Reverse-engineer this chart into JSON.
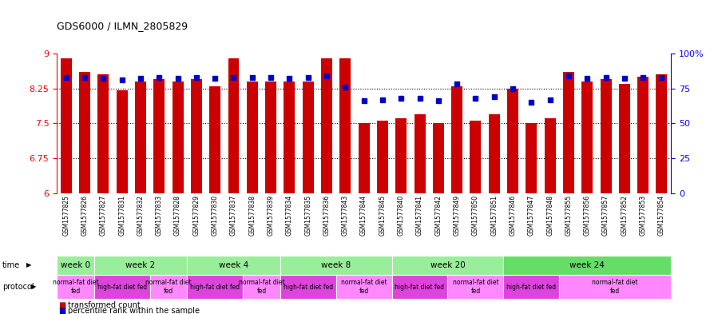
{
  "title": "GDS6000 / ILMN_2805829",
  "samples": [
    "GSM1577825",
    "GSM1577826",
    "GSM1577827",
    "GSM1577831",
    "GSM1577832",
    "GSM1577833",
    "GSM1577828",
    "GSM1577829",
    "GSM1577830",
    "GSM1577837",
    "GSM1577838",
    "GSM1577839",
    "GSM1577834",
    "GSM1577835",
    "GSM1577836",
    "GSM1577843",
    "GSM1577844",
    "GSM1577845",
    "GSM1577840",
    "GSM1577841",
    "GSM1577842",
    "GSM1577849",
    "GSM1577850",
    "GSM1577851",
    "GSM1577846",
    "GSM1577847",
    "GSM1577848",
    "GSM1577855",
    "GSM1577856",
    "GSM1577857",
    "GSM1577852",
    "GSM1577853",
    "GSM1577854"
  ],
  "bar_values": [
    8.9,
    8.6,
    8.55,
    8.2,
    8.4,
    8.45,
    8.4,
    8.45,
    8.3,
    8.9,
    8.4,
    8.4,
    8.4,
    8.4,
    8.9,
    8.9,
    7.5,
    7.55,
    7.6,
    7.7,
    7.5,
    8.3,
    7.55,
    7.7,
    8.25,
    7.5,
    7.6,
    8.6,
    8.4,
    8.45,
    8.35,
    8.5,
    8.55
  ],
  "percentile_values": [
    83,
    83,
    82,
    81,
    82,
    83,
    82,
    83,
    82,
    83,
    83,
    83,
    82,
    83,
    84,
    76,
    66,
    67,
    68,
    68,
    66,
    78,
    68,
    69,
    75,
    65,
    67,
    84,
    82,
    83,
    82,
    83,
    83
  ],
  "bar_color": "#cc0000",
  "blue_color": "#0000cc",
  "ylim_left": [
    6,
    9
  ],
  "ylim_right": [
    0,
    100
  ],
  "yticks_left": [
    6,
    6.75,
    7.5,
    8.25,
    9
  ],
  "yticks_right": [
    0,
    25,
    50,
    75,
    100
  ],
  "grid_values": [
    6.75,
    7.5,
    8.25
  ],
  "time_groups": [
    {
      "label": "week 0",
      "start": 0,
      "end": 2,
      "color": "#99ee99"
    },
    {
      "label": "week 2",
      "start": 2,
      "end": 7,
      "color": "#99ee99"
    },
    {
      "label": "week 4",
      "start": 7,
      "end": 12,
      "color": "#99ee99"
    },
    {
      "label": "week 8",
      "start": 12,
      "end": 18,
      "color": "#99ee99"
    },
    {
      "label": "week 20",
      "start": 18,
      "end": 24,
      "color": "#99ee99"
    },
    {
      "label": "week 24",
      "start": 24,
      "end": 33,
      "color": "#66dd66"
    }
  ],
  "protocol_groups": [
    {
      "label": "normal-fat diet\nfed",
      "start": 0,
      "end": 2,
      "color": "#ff88ff"
    },
    {
      "label": "high-fat diet fed",
      "start": 2,
      "end": 5,
      "color": "#dd44dd"
    },
    {
      "label": "normal-fat diet\nfed",
      "start": 5,
      "end": 7,
      "color": "#ff88ff"
    },
    {
      "label": "high-fat diet fed",
      "start": 7,
      "end": 10,
      "color": "#dd44dd"
    },
    {
      "label": "normal-fat diet\nfed",
      "start": 10,
      "end": 12,
      "color": "#ff88ff"
    },
    {
      "label": "high-fat diet fed",
      "start": 12,
      "end": 15,
      "color": "#dd44dd"
    },
    {
      "label": "normal-fat diet\nfed",
      "start": 15,
      "end": 18,
      "color": "#ff88ff"
    },
    {
      "label": "high-fat diet fed",
      "start": 18,
      "end": 21,
      "color": "#dd44dd"
    },
    {
      "label": "normal-fat diet\nfed",
      "start": 21,
      "end": 24,
      "color": "#ff88ff"
    },
    {
      "label": "high-fat diet fed",
      "start": 24,
      "end": 27,
      "color": "#dd44dd"
    },
    {
      "label": "normal-fat diet\nfed",
      "start": 27,
      "end": 33,
      "color": "#ff88ff"
    }
  ]
}
